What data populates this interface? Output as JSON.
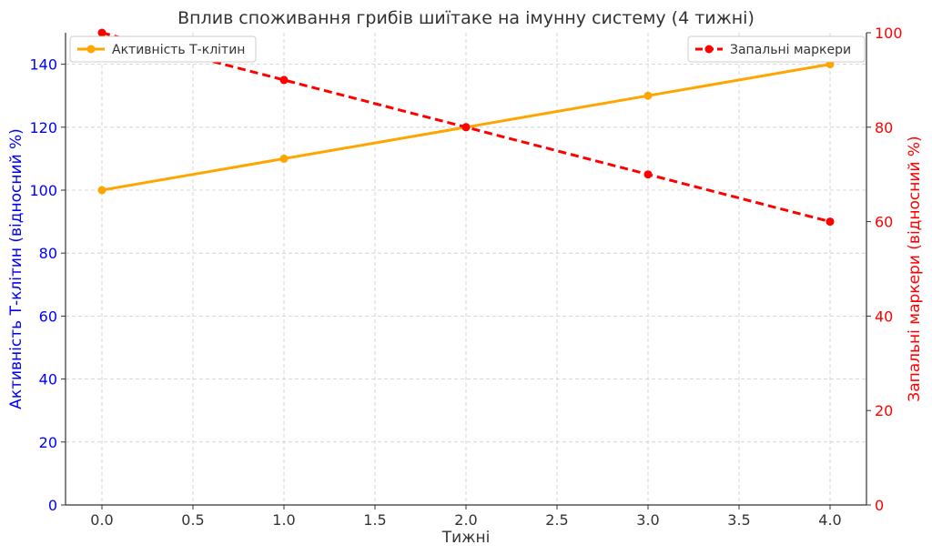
{
  "chart_data": {
    "type": "line",
    "title": "Вплив споживання грибів шиїтаке на імунну систему (4 тижні)",
    "xlabel": "Тижні",
    "x": [
      0.0,
      1.0,
      2.0,
      3.0,
      4.0
    ],
    "xlim": [
      -0.2,
      4.2
    ],
    "x_ticks": [
      "0.0",
      "0.5",
      "1.0",
      "1.5",
      "2.0",
      "2.5",
      "3.0",
      "3.5",
      "4.0"
    ],
    "grid": true,
    "left_axis": {
      "label": "Активність Т-клітин (відносний %)",
      "color": "#0000ff",
      "ylim": [
        0,
        150
      ],
      "ticks": [
        "0",
        "20",
        "40",
        "60",
        "80",
        "100",
        "120",
        "140"
      ]
    },
    "right_axis": {
      "label": "Запальні маркери (відносний %)",
      "color": "#ff0000",
      "ylim": [
        0,
        100
      ],
      "ticks": [
        "0",
        "20",
        "40",
        "60",
        "80",
        "100"
      ]
    },
    "series": [
      {
        "name": "Активність Т-клітин",
        "axis": "left",
        "color": "#ffa500",
        "line_style": "solid",
        "values": [
          100,
          110,
          120,
          130,
          140
        ],
        "legend_position": "top-left"
      },
      {
        "name": "Запальні маркери",
        "axis": "right",
        "color": "#ff0000",
        "line_style": "dashed",
        "values": [
          100,
          90,
          80,
          70,
          60
        ],
        "legend_position": "top-right"
      }
    ]
  }
}
